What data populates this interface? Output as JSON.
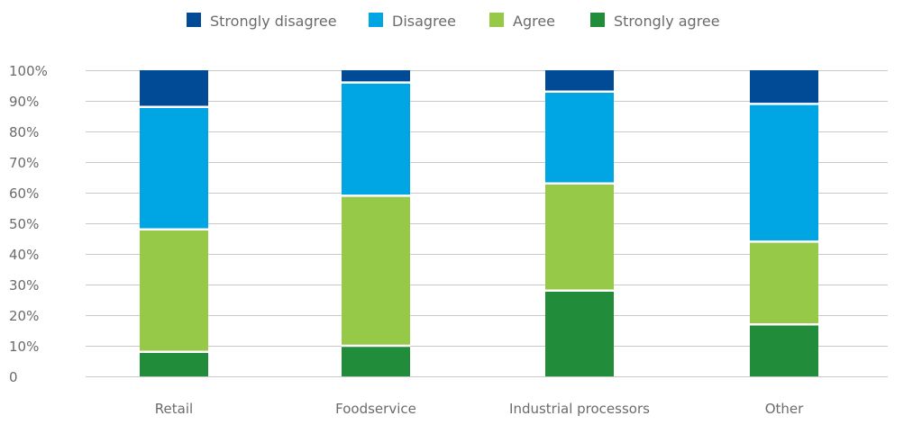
{
  "chart_data": {
    "type": "bar",
    "stacked": true,
    "percent": true,
    "title": "",
    "xlabel": "",
    "ylabel": "",
    "ylim": [
      0,
      100
    ],
    "yticks": [
      "0",
      "10%",
      "20%",
      "30%",
      "40%",
      "50%",
      "60%",
      "70%",
      "80%",
      "90%",
      "100%"
    ],
    "categories": [
      "Retail",
      "Foodservice",
      "Industrial processors",
      "Other"
    ],
    "series": [
      {
        "name": "Strongly agree",
        "color": "#218d3b",
        "values": [
          8,
          10,
          28,
          17
        ]
      },
      {
        "name": "Agree",
        "color": "#97c948",
        "values": [
          40,
          49,
          35,
          27
        ]
      },
      {
        "name": "Disagree",
        "color": "#00a6e4",
        "values": [
          40,
          37,
          30,
          45
        ]
      },
      {
        "name": "Strongly disagree",
        "color": "#014a96",
        "values": [
          12,
          4,
          7,
          11
        ]
      }
    ],
    "legend": {
      "position": "top",
      "order": [
        "Strongly disagree",
        "Disagree",
        "Agree",
        "Strongly agree"
      ]
    },
    "grid": true
  }
}
